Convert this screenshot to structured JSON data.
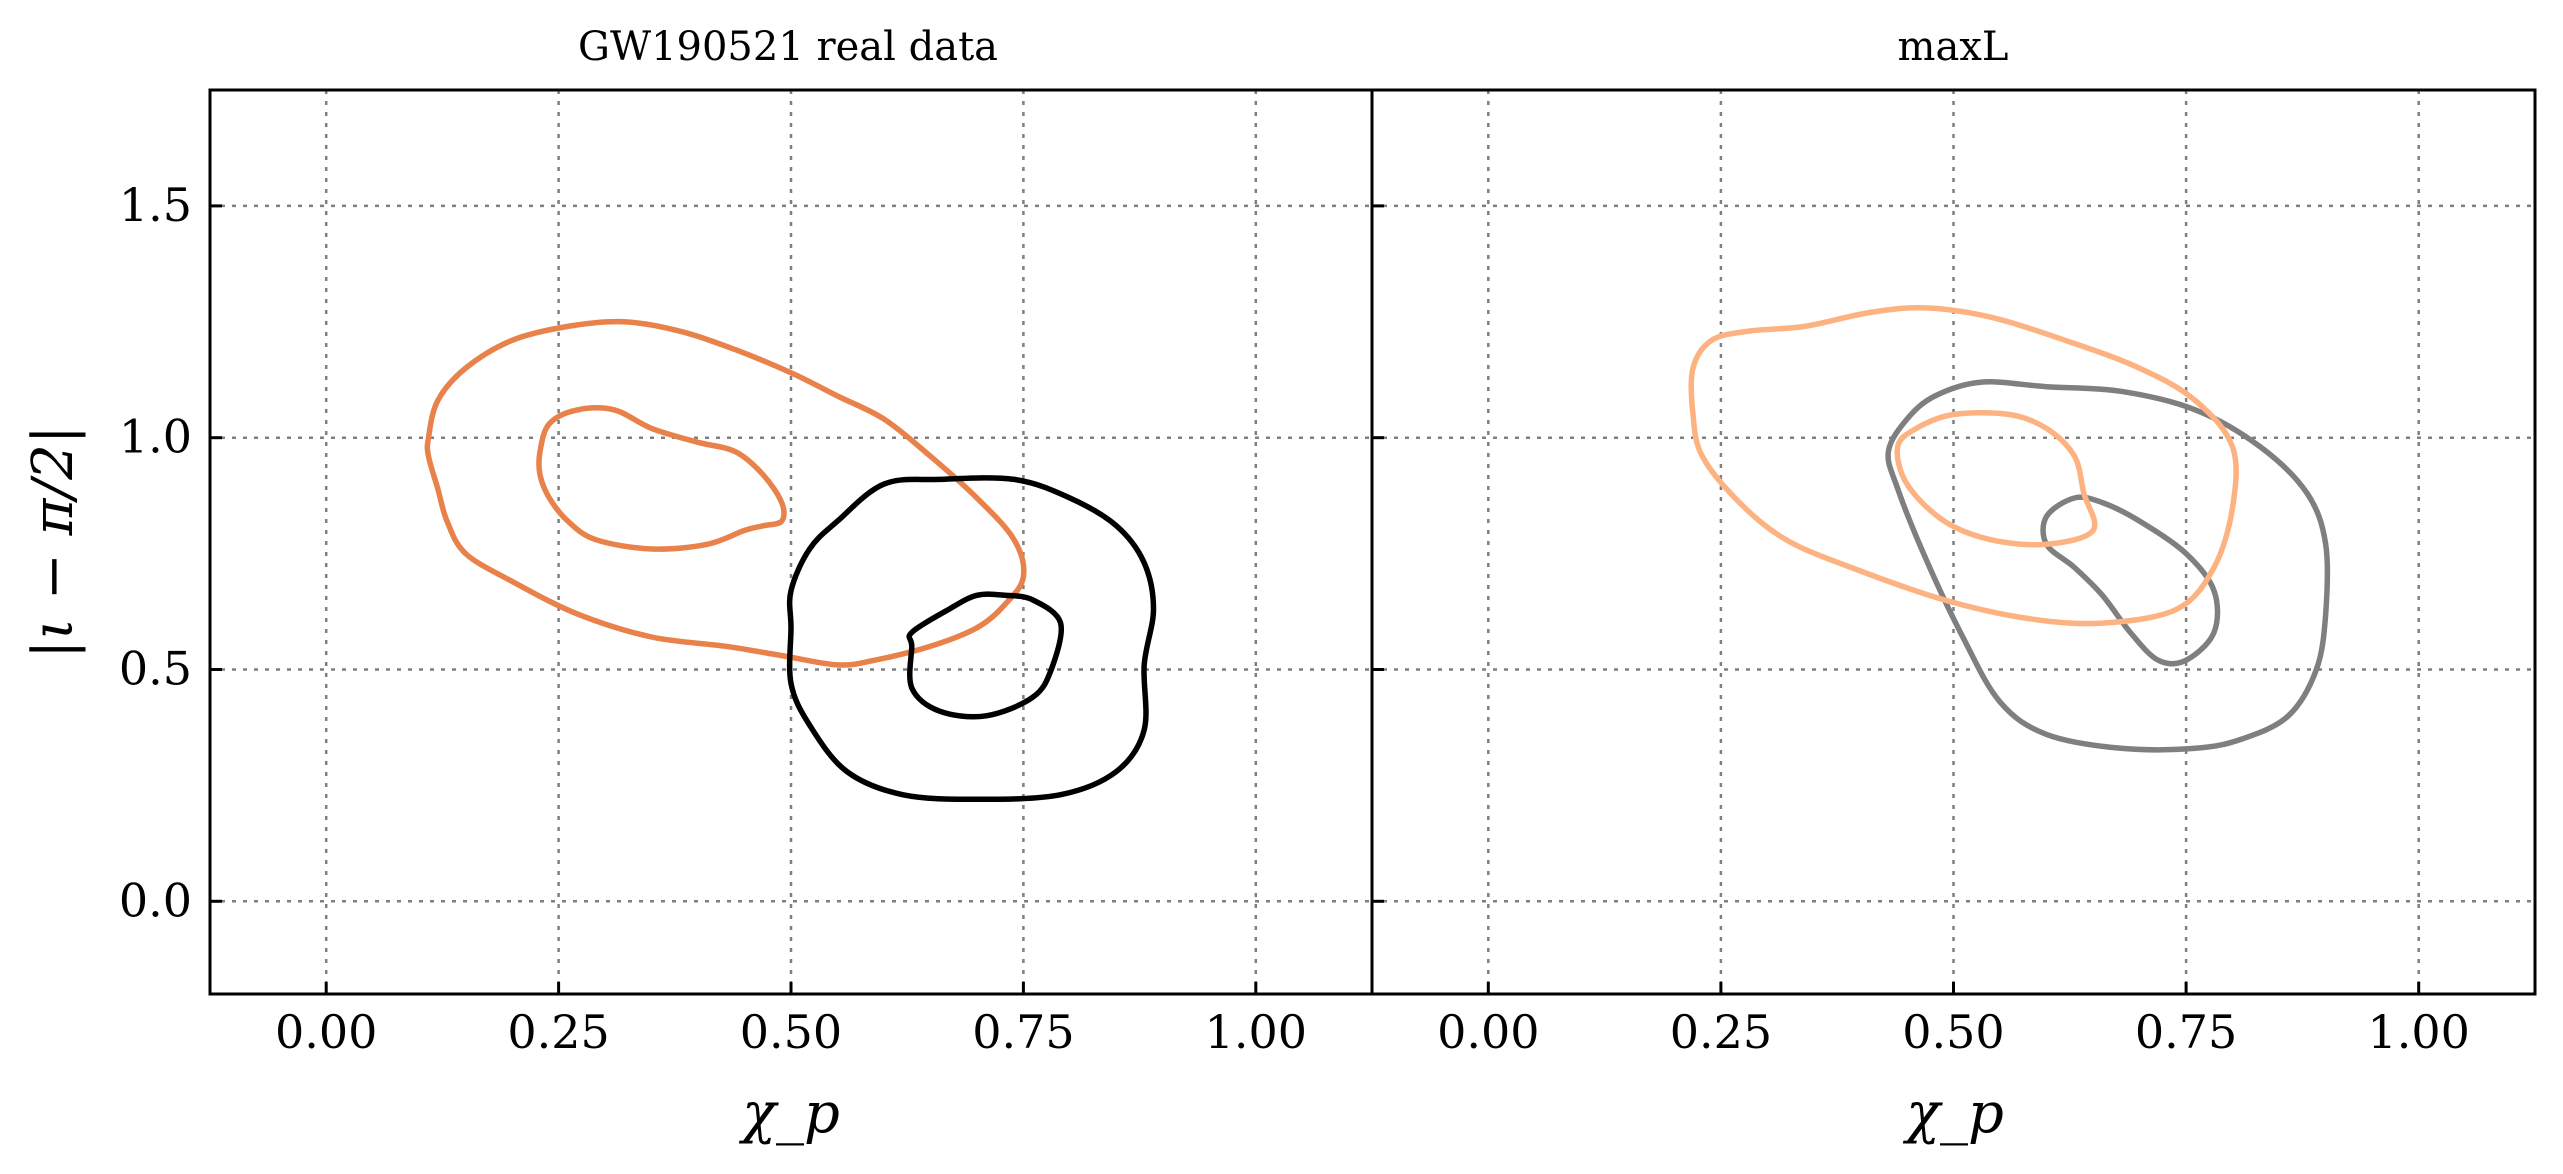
{
  "chart_data": [
    {
      "type": "contour",
      "title": "GW190521 real data",
      "xlabel": "χ_p",
      "ylabel": "|ι − π/2|",
      "xlim": [
        -0.125,
        1.125
      ],
      "ylim": [
        -0.2,
        1.75
      ],
      "xticks": [
        "0.00",
        "0.25",
        "0.50",
        "0.75",
        "1.00"
      ],
      "yticks": [
        "0.0",
        "0.5",
        "1.0",
        "1.5"
      ],
      "grid": true,
      "series": [
        {
          "color": "#e8824a",
          "contours": [
            [
              [
                0.11,
                1.0
              ],
              [
                0.12,
                1.08
              ],
              [
                0.15,
                1.15
              ],
              [
                0.2,
                1.21
              ],
              [
                0.26,
                1.24
              ],
              [
                0.32,
                1.25
              ],
              [
                0.38,
                1.23
              ],
              [
                0.44,
                1.19
              ],
              [
                0.5,
                1.14
              ],
              [
                0.55,
                1.09
              ],
              [
                0.6,
                1.04
              ],
              [
                0.65,
                0.96
              ],
              [
                0.7,
                0.87
              ],
              [
                0.74,
                0.78
              ],
              [
                0.75,
                0.7
              ],
              [
                0.73,
                0.64
              ],
              [
                0.7,
                0.59
              ],
              [
                0.65,
                0.55
              ],
              [
                0.59,
                0.52
              ],
              [
                0.55,
                0.51
              ],
              [
                0.49,
                0.53
              ],
              [
                0.43,
                0.55
              ],
              [
                0.35,
                0.57
              ],
              [
                0.27,
                0.62
              ],
              [
                0.2,
                0.69
              ],
              [
                0.15,
                0.75
              ],
              [
                0.13,
                0.82
              ],
              [
                0.12,
                0.89
              ],
              [
                0.11,
                0.96
              ],
              [
                0.11,
                1.0
              ]
            ],
            [
              [
                0.23,
                0.97
              ],
              [
                0.24,
                1.03
              ],
              [
                0.27,
                1.06
              ],
              [
                0.31,
                1.06
              ],
              [
                0.35,
                1.02
              ],
              [
                0.4,
                0.99
              ],
              [
                0.44,
                0.97
              ],
              [
                0.47,
                0.92
              ],
              [
                0.49,
                0.86
              ],
              [
                0.49,
                0.82
              ],
              [
                0.47,
                0.81
              ],
              [
                0.45,
                0.8
              ],
              [
                0.41,
                0.77
              ],
              [
                0.35,
                0.76
              ],
              [
                0.29,
                0.78
              ],
              [
                0.26,
                0.82
              ],
              [
                0.24,
                0.87
              ],
              [
                0.23,
                0.92
              ],
              [
                0.23,
                0.97
              ]
            ]
          ]
        },
        {
          "color": "#000000",
          "contours": [
            [
              [
                0.5,
                0.59
              ],
              [
                0.5,
                0.67
              ],
              [
                0.52,
                0.76
              ],
              [
                0.55,
                0.82
              ],
              [
                0.6,
                0.9
              ],
              [
                0.66,
                0.91
              ],
              [
                0.74,
                0.91
              ],
              [
                0.8,
                0.87
              ],
              [
                0.85,
                0.81
              ],
              [
                0.88,
                0.73
              ],
              [
                0.89,
                0.63
              ],
              [
                0.88,
                0.51
              ],
              [
                0.88,
                0.37
              ],
              [
                0.85,
                0.28
              ],
              [
                0.79,
                0.23
              ],
              [
                0.7,
                0.22
              ],
              [
                0.62,
                0.23
              ],
              [
                0.56,
                0.28
              ],
              [
                0.52,
                0.38
              ],
              [
                0.5,
                0.47
              ],
              [
                0.5,
                0.59
              ]
            ],
            [
              [
                0.63,
                0.55
              ],
              [
                0.63,
                0.58
              ],
              [
                0.67,
                0.63
              ],
              [
                0.7,
                0.66
              ],
              [
                0.73,
                0.66
              ],
              [
                0.76,
                0.65
              ],
              [
                0.79,
                0.6
              ],
              [
                0.78,
                0.5
              ],
              [
                0.76,
                0.44
              ],
              [
                0.71,
                0.4
              ],
              [
                0.66,
                0.41
              ],
              [
                0.63,
                0.46
              ],
              [
                0.63,
                0.55
              ]
            ]
          ]
        }
      ]
    },
    {
      "type": "contour",
      "title": "maxL",
      "xlabel": "χ_p",
      "xlim": [
        -0.125,
        1.125
      ],
      "ylim": [
        -0.2,
        1.75
      ],
      "xticks": [
        "0.00",
        "0.25",
        "0.50",
        "0.75",
        "1.00"
      ],
      "grid": true,
      "series": [
        {
          "color": "#7f7f7f",
          "contours": [
            [
              [
                0.43,
                0.97
              ],
              [
                0.45,
                1.04
              ],
              [
                0.48,
                1.09
              ],
              [
                0.53,
                1.12
              ],
              [
                0.6,
                1.11
              ],
              [
                0.68,
                1.1
              ],
              [
                0.76,
                1.06
              ],
              [
                0.83,
                0.98
              ],
              [
                0.88,
                0.88
              ],
              [
                0.9,
                0.77
              ],
              [
                0.9,
                0.62
              ],
              [
                0.89,
                0.5
              ],
              [
                0.86,
                0.4
              ],
              [
                0.81,
                0.35
              ],
              [
                0.76,
                0.33
              ],
              [
                0.68,
                0.33
              ],
              [
                0.6,
                0.36
              ],
              [
                0.55,
                0.43
              ],
              [
                0.51,
                0.57
              ],
              [
                0.47,
                0.74
              ],
              [
                0.44,
                0.89
              ],
              [
                0.43,
                0.97
              ]
            ],
            [
              [
                0.6,
                0.83
              ],
              [
                0.63,
                0.87
              ],
              [
                0.66,
                0.86
              ],
              [
                0.7,
                0.82
              ],
              [
                0.75,
                0.75
              ],
              [
                0.78,
                0.67
              ],
              [
                0.78,
                0.58
              ],
              [
                0.75,
                0.52
              ],
              [
                0.72,
                0.52
              ],
              [
                0.69,
                0.58
              ],
              [
                0.66,
                0.66
              ],
              [
                0.63,
                0.72
              ],
              [
                0.6,
                0.77
              ],
              [
                0.6,
                0.83
              ]
            ]
          ]
        },
        {
          "color": "#fdb381",
          "contours": [
            [
              [
                0.22,
                1.15
              ],
              [
                0.24,
                1.21
              ],
              [
                0.28,
                1.23
              ],
              [
                0.34,
                1.24
              ],
              [
                0.41,
                1.27
              ],
              [
                0.47,
                1.28
              ],
              [
                0.54,
                1.26
              ],
              [
                0.62,
                1.21
              ],
              [
                0.7,
                1.15
              ],
              [
                0.76,
                1.08
              ],
              [
                0.8,
                0.98
              ],
              [
                0.8,
                0.85
              ],
              [
                0.78,
                0.72
              ],
              [
                0.74,
                0.63
              ],
              [
                0.66,
                0.6
              ],
              [
                0.58,
                0.61
              ],
              [
                0.49,
                0.65
              ],
              [
                0.39,
                0.72
              ],
              [
                0.32,
                0.78
              ],
              [
                0.27,
                0.86
              ],
              [
                0.23,
                0.96
              ],
              [
                0.22,
                1.05
              ],
              [
                0.22,
                1.15
              ]
            ],
            [
              [
                0.44,
                0.98
              ],
              [
                0.46,
                1.02
              ],
              [
                0.5,
                1.05
              ],
              [
                0.56,
                1.05
              ],
              [
                0.6,
                1.02
              ],
              [
                0.63,
                0.96
              ],
              [
                0.64,
                0.88
              ],
              [
                0.65,
                0.8
              ],
              [
                0.6,
                0.77
              ],
              [
                0.54,
                0.78
              ],
              [
                0.49,
                0.82
              ],
              [
                0.45,
                0.9
              ],
              [
                0.44,
                0.98
              ]
            ]
          ]
        }
      ]
    }
  ]
}
